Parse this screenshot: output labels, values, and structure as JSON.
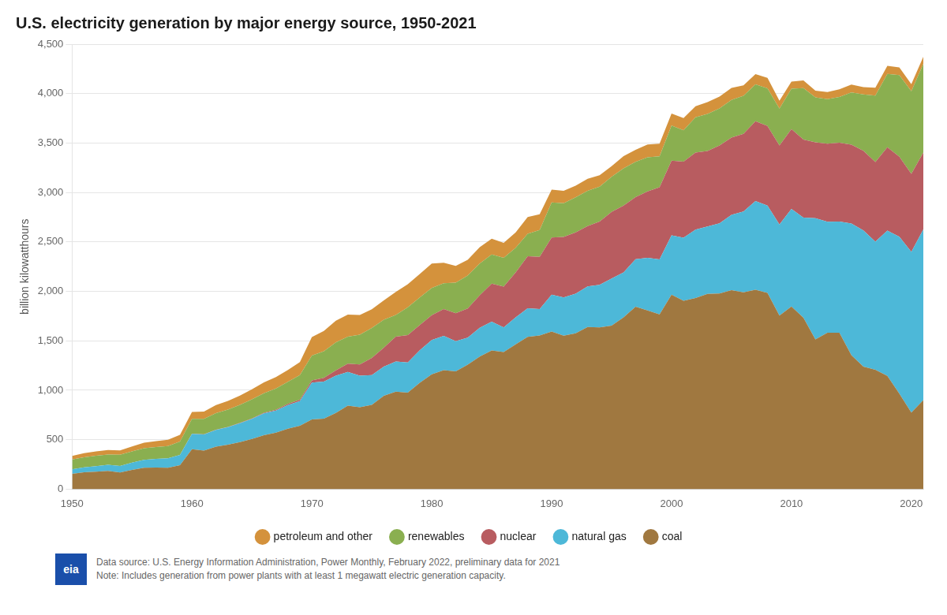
{
  "chart_data": {
    "type": "area",
    "stacked": true,
    "title": "U.S. electricity generation by major energy source, 1950-2021",
    "ylabel": "billion kilowatthours",
    "x": [
      1950,
      1951,
      1952,
      1953,
      1954,
      1955,
      1956,
      1957,
      1958,
      1959,
      1960,
      1961,
      1962,
      1963,
      1964,
      1965,
      1966,
      1967,
      1968,
      1969,
      1970,
      1971,
      1972,
      1973,
      1974,
      1975,
      1976,
      1977,
      1978,
      1979,
      1980,
      1981,
      1982,
      1983,
      1984,
      1985,
      1986,
      1987,
      1988,
      1989,
      1990,
      1991,
      1992,
      1993,
      1994,
      1995,
      1996,
      1997,
      1998,
      1999,
      2000,
      2001,
      2002,
      2003,
      2004,
      2005,
      2006,
      2007,
      2008,
      2009,
      2010,
      2011,
      2012,
      2013,
      2014,
      2015,
      2016,
      2017,
      2018,
      2019,
      2020,
      2021
    ],
    "series": [
      {
        "name": "coal",
        "color": "#A07840",
        "values": [
          155,
          170,
          177,
          184,
          169,
          195,
          216,
          219,
          217,
          242,
          403,
          390,
          429,
          449,
          475,
          508,
          546,
          571,
          611,
          641,
          704,
          713,
          771,
          845,
          828,
          853,
          944,
          985,
          976,
          1075,
          1162,
          1203,
          1192,
          1259,
          1341,
          1402,
          1386,
          1464,
          1540,
          1554,
          1594,
          1551,
          1576,
          1639,
          1635,
          1653,
          1737,
          1845,
          1807,
          1767,
          1966,
          1904,
          1933,
          1974,
          1978,
          2013,
          1991,
          2016,
          1985,
          1755,
          1847,
          1733,
          1514,
          1581,
          1581,
          1355,
          1239,
          1207,
          1146,
          966,
          774,
          900
        ]
      },
      {
        "name": "natural gas",
        "color": "#4DB8D8",
        "values": [
          45,
          50,
          55,
          62,
          65,
          74,
          80,
          88,
          95,
          105,
          157,
          163,
          170,
          178,
          192,
          202,
          221,
          223,
          239,
          249,
          373,
          375,
          376,
          341,
          319,
          300,
          295,
          305,
          305,
          329,
          346,
          346,
          305,
          274,
          291,
          292,
          249,
          273,
          289,
          267,
          373,
          387,
          401,
          411,
          431,
          478,
          455,
          480,
          532,
          557,
          601,
          639,
          691,
          682,
          710,
          760,
          816,
          897,
          882,
          921,
          987,
          1013,
          1225,
          1124,
          1126,
          1331,
          1378,
          1296,
          1468,
          1586,
          1625,
          1726
        ]
      },
      {
        "name": "nuclear",
        "color": "#B85C60",
        "values": [
          0,
          0,
          0,
          0,
          0,
          0,
          0,
          0,
          0,
          0,
          1,
          2,
          2,
          3,
          4,
          4,
          6,
          8,
          13,
          14,
          22,
          38,
          54,
          83,
          114,
          173,
          191,
          251,
          276,
          255,
          251,
          273,
          282,
          294,
          328,
          384,
          414,
          455,
          527,
          529,
          577,
          613,
          619,
          610,
          641,
          673,
          675,
          628,
          673,
          728,
          754,
          769,
          780,
          764,
          788,
          782,
          787,
          807,
          806,
          799,
          807,
          790,
          769,
          789,
          797,
          798,
          805,
          805,
          843,
          809,
          790,
          778
        ]
      },
      {
        "name": "renewables",
        "color": "#8AAF50",
        "values": [
          101,
          103,
          107,
          105,
          115,
          113,
          118,
          118,
          123,
          134,
          149,
          155,
          167,
          175,
          181,
          195,
          197,
          216,
          222,
          250,
          251,
          268,
          283,
          272,
          300,
          303,
          284,
          221,
          281,
          279,
          276,
          261,
          309,
          332,
          321,
          295,
          291,
          249,
          227,
          271,
          355,
          340,
          355,
          358,
          352,
          355,
          377,
          357,
          343,
          313,
          356,
          317,
          356,
          375,
          374,
          380,
          383,
          374,
          381,
          373,
          408,
          519,
          453,
          449,
          461,
          527,
          569,
          672,
          742,
          826,
          834,
          897
        ]
      },
      {
        "name": "petroleum and other",
        "color": "#D4923C",
        "values": [
          35,
          40,
          42,
          45,
          42,
          50,
          55,
          60,
          65,
          68,
          70,
          75,
          82,
          88,
          95,
          100,
          110,
          115,
          120,
          130,
          188,
          205,
          220,
          224,
          200,
          190,
          195,
          232,
          234,
          237,
          246,
          206,
          170,
          161,
          165,
          160,
          151,
          156,
          169,
          158,
          130,
          126,
          118,
          120,
          116,
          108,
          123,
          121,
          130,
          128,
          121,
          124,
          112,
          119,
          120,
          122,
          107,
          103,
          105,
          80,
          72,
          78,
          69,
          73,
          79,
          81,
          74,
          79,
          82,
          78,
          72,
          72
        ]
      }
    ],
    "xlim": [
      1950,
      2021
    ],
    "xticks": [
      1950,
      1960,
      1970,
      1980,
      1990,
      2000,
      2010,
      2020
    ],
    "ylim": [
      0,
      4500
    ],
    "yticks": [
      0,
      500,
      {
        "value": 1000,
        "label": "1,000"
      },
      {
        "value": 1500,
        "label": "1,500"
      },
      {
        "value": 2000,
        "label": "2,000"
      },
      {
        "value": 2500,
        "label": "2,500"
      },
      {
        "value": 3000,
        "label": "3,000"
      },
      {
        "value": 3500,
        "label": "3,500"
      },
      {
        "value": 4000,
        "label": "4,000"
      },
      {
        "value": 4500,
        "label": "4,500"
      }
    ],
    "grid": "y",
    "legend": "bottom",
    "annotations": [
      "eia",
      "Data source: U.S. Energy Information Administration, Power Monthly, February 2022, preliminary data for 2021",
      "Note: Includes generation from power plants with at least 1 megawatt electric generation capacity."
    ]
  }
}
